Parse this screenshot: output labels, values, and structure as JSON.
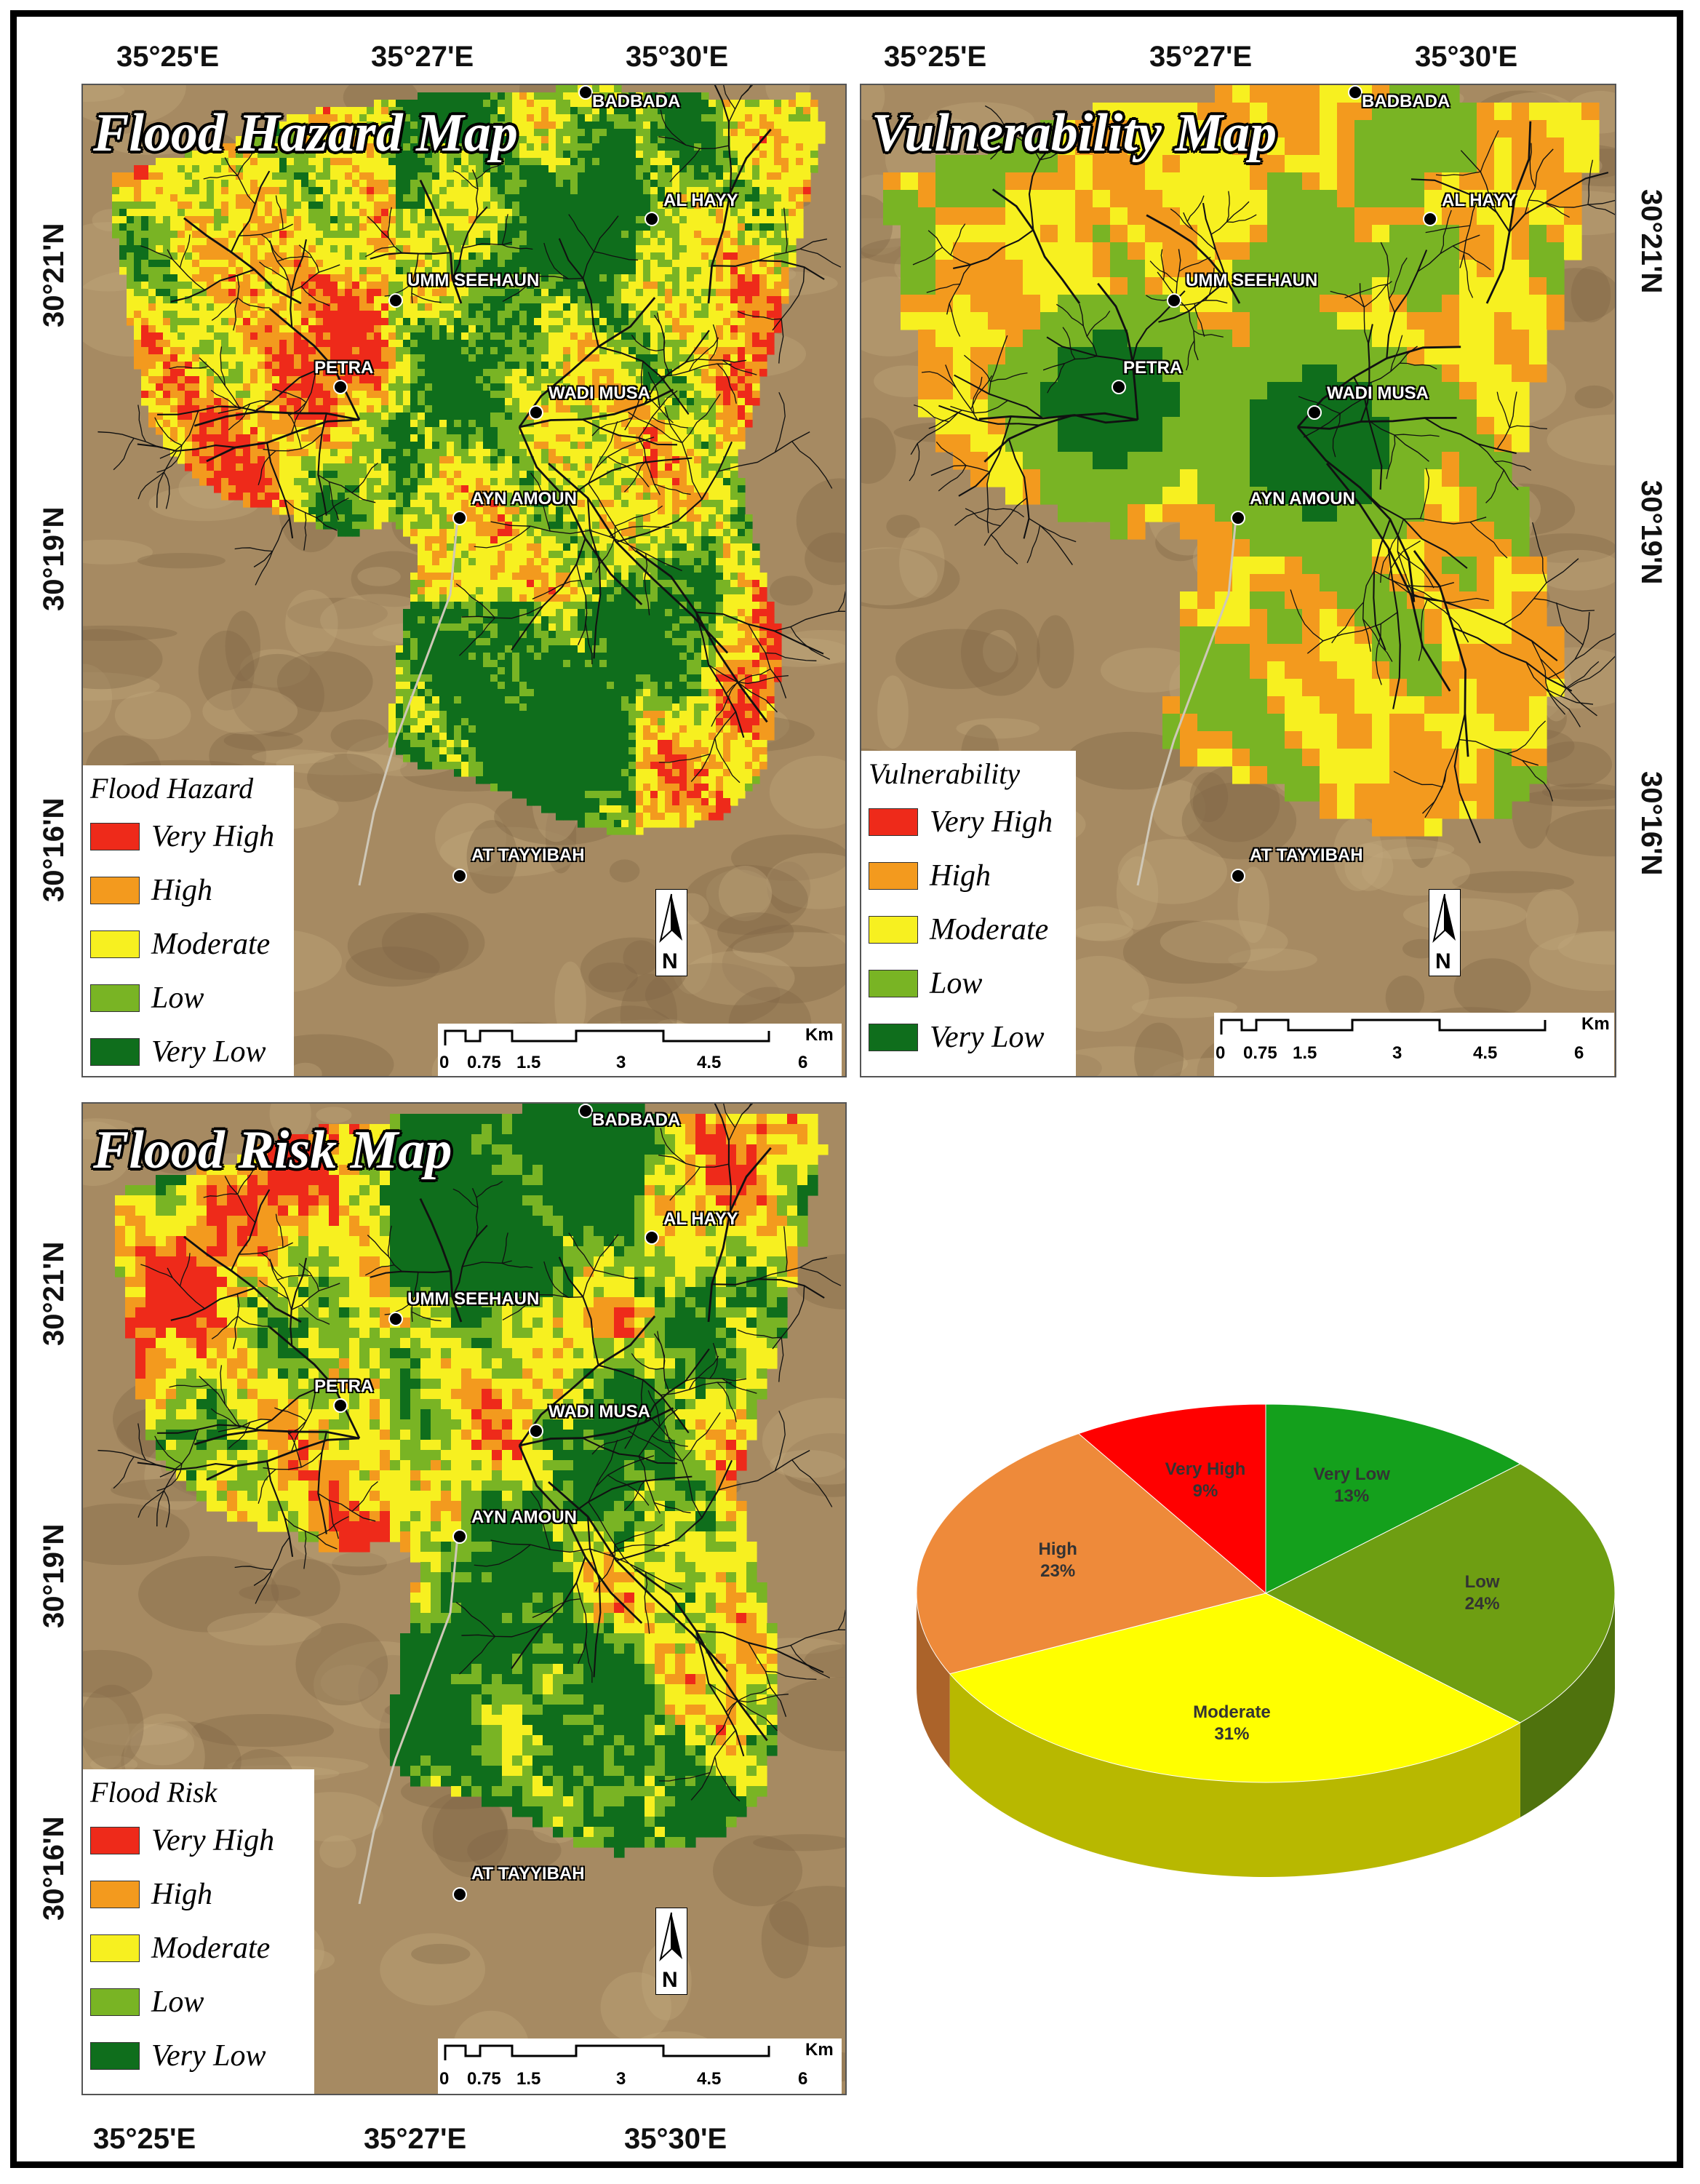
{
  "colors": {
    "very_high": "#ee2a1a",
    "high": "#f39a1e",
    "moderate": "#f7f020",
    "low": "#79b424",
    "very_low": "#0f6e1c",
    "satellite": "#a68a62"
  },
  "top_longitudes": [
    "35°25'E",
    "35°27'E",
    "35°30'E"
  ],
  "top_longitudes_right": [
    "35°25'E",
    "35°27'E",
    "35°30'E"
  ],
  "bottom_longitudes": [
    "35°25'E",
    "35°27'E",
    "35°30'E"
  ],
  "left_latitudes_top": [
    "30°21'N",
    "30°19'N",
    "30°16'N"
  ],
  "right_latitudes_top": [
    "30°21'N",
    "30°19'N",
    "30°16'N"
  ],
  "left_latitudes_bottom": [
    "30°21'N",
    "30°19'N",
    "30°16'N"
  ],
  "place_names": {
    "badbada": "BADBADA",
    "al_hayy": "AL HAYY",
    "umm_seehaun": "UMM SEEHAUN",
    "petra": "PETRA",
    "wadi_musa": "WADI MUSA",
    "ayn_amoun": "AYN AMOUN",
    "at_tayyibah": "AT TAYYIBAH",
    "text": "Text"
  },
  "maps": {
    "hazard": {
      "title": "Flood Hazard Map",
      "legend_title": "Flood Hazard",
      "legend": [
        "Very High",
        "High",
        "Moderate",
        "Low",
        "Very Low"
      ]
    },
    "vulnerability": {
      "title": "Vulnerability Map",
      "legend_title": "Vulnerability",
      "legend": [
        "Very High",
        "High",
        "Moderate",
        "Low",
        "Very Low"
      ]
    },
    "risk": {
      "title": "Flood Risk Map",
      "legend_title": "Flood Risk",
      "legend": [
        "Very High",
        "High",
        "Moderate",
        "Low",
        "Very Low"
      ]
    }
  },
  "scalebar": {
    "unit": "Km",
    "ticks": [
      "0",
      "0.75",
      "1.5",
      "3",
      "4.5",
      "6"
    ]
  },
  "chart_data": {
    "type": "pie",
    "style": "3d",
    "categories": [
      "Very Low",
      "Low",
      "Moderate",
      "High",
      "Very High"
    ],
    "values": [
      13,
      24,
      31,
      23,
      9
    ],
    "value_labels": [
      "13%",
      "24%",
      "31%",
      "23%",
      "9%"
    ],
    "colors": [
      "#14a01c",
      "#6e9e12",
      "#ffff00",
      "#ee8a3a",
      "#ff0000"
    ]
  }
}
